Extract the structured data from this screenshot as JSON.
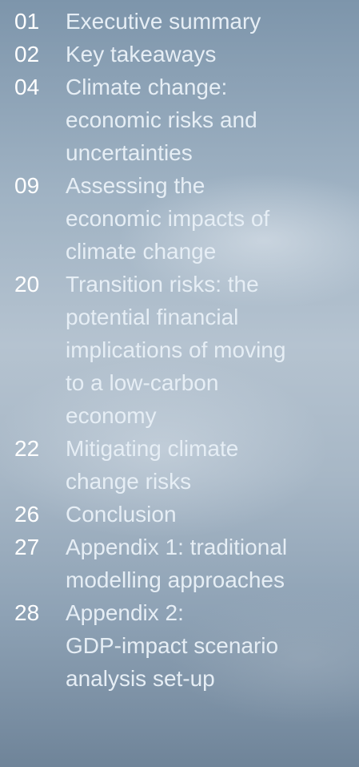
{
  "toc": [
    {
      "number": "01",
      "lines": [
        "Executive summary"
      ]
    },
    {
      "number": "02",
      "lines": [
        "Key takeaways"
      ]
    },
    {
      "number": "04",
      "lines": [
        "Climate change:",
        "economic risks and",
        "uncertainties"
      ]
    },
    {
      "number": "09",
      "lines": [
        "Assessing the",
        "economic impacts of",
        "climate change"
      ]
    },
    {
      "number": "20",
      "lines": [
        "Transition risks: the",
        "potential financial",
        "implications of moving",
        "to a low-carbon",
        "economy"
      ]
    },
    {
      "number": "22",
      "lines": [
        "Mitigating climate",
        "change risks"
      ]
    },
    {
      "number": "26",
      "lines": [
        "Conclusion"
      ]
    },
    {
      "number": "27",
      "lines": [
        "Appendix 1: traditional",
        "modelling approaches"
      ]
    },
    {
      "number": "28",
      "lines": [
        "Appendix 2:",
        "GDP-impact scenario",
        "analysis set-up"
      ]
    }
  ]
}
